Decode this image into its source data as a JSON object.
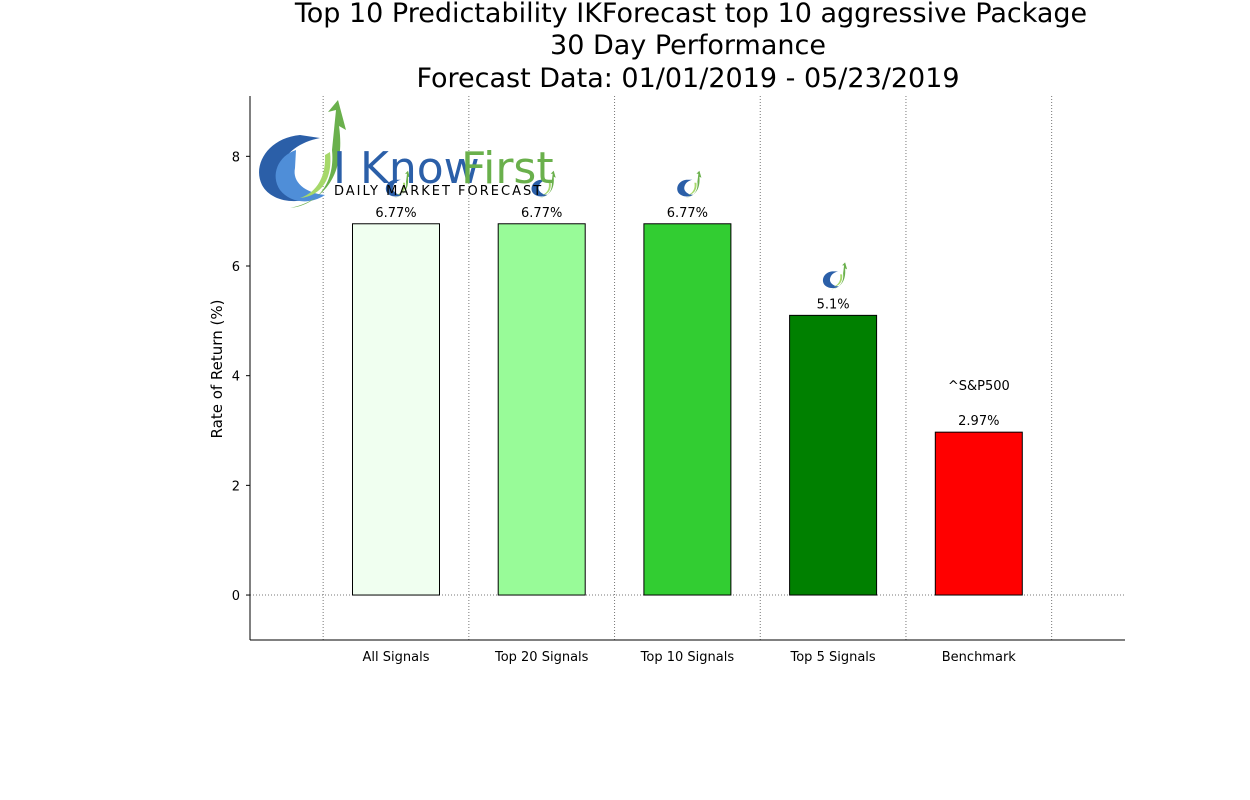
{
  "chart_data": {
    "type": "bar",
    "title_lines": [
      "Top 10 Predictability IKForecast top 10 aggressive Package",
      "30 Day Performance",
      "Forecast Data: 01/01/2019 - 05/23/2019"
    ],
    "xlabel": "",
    "ylabel": "Rate of Return (%)",
    "ylim": [
      -0.82,
      9.1
    ],
    "yticks": [
      0,
      2,
      4,
      6,
      8
    ],
    "grid": "vertical dotted lines between categories, dotted zero line",
    "categories": [
      "All Signals",
      "Top 20 Signals",
      "Top 10 Signals",
      "Top 5 Signals",
      "Benchmark"
    ],
    "values": [
      6.77,
      6.77,
      6.77,
      5.1,
      2.97
    ],
    "data_labels": [
      "6.77%",
      "6.77%",
      "6.77%",
      "5.1%",
      "2.97%"
    ],
    "bar_colors": [
      "#f0fff0",
      "#98fb98",
      "#32cd32",
      "#008000",
      "#ff0000"
    ],
    "benchmark_annotation": "^S&P500",
    "small_logo_on": [
      "All Signals",
      "Top 20 Signals",
      "Top 10 Signals",
      "Top 5 Signals"
    ]
  },
  "logo": {
    "brand_part1": "I Know",
    "brand_part2": "First",
    "tagline": "Daily Market Forecast",
    "colors": {
      "blue": "#2b5fa8",
      "green": "#6ab04c"
    }
  }
}
